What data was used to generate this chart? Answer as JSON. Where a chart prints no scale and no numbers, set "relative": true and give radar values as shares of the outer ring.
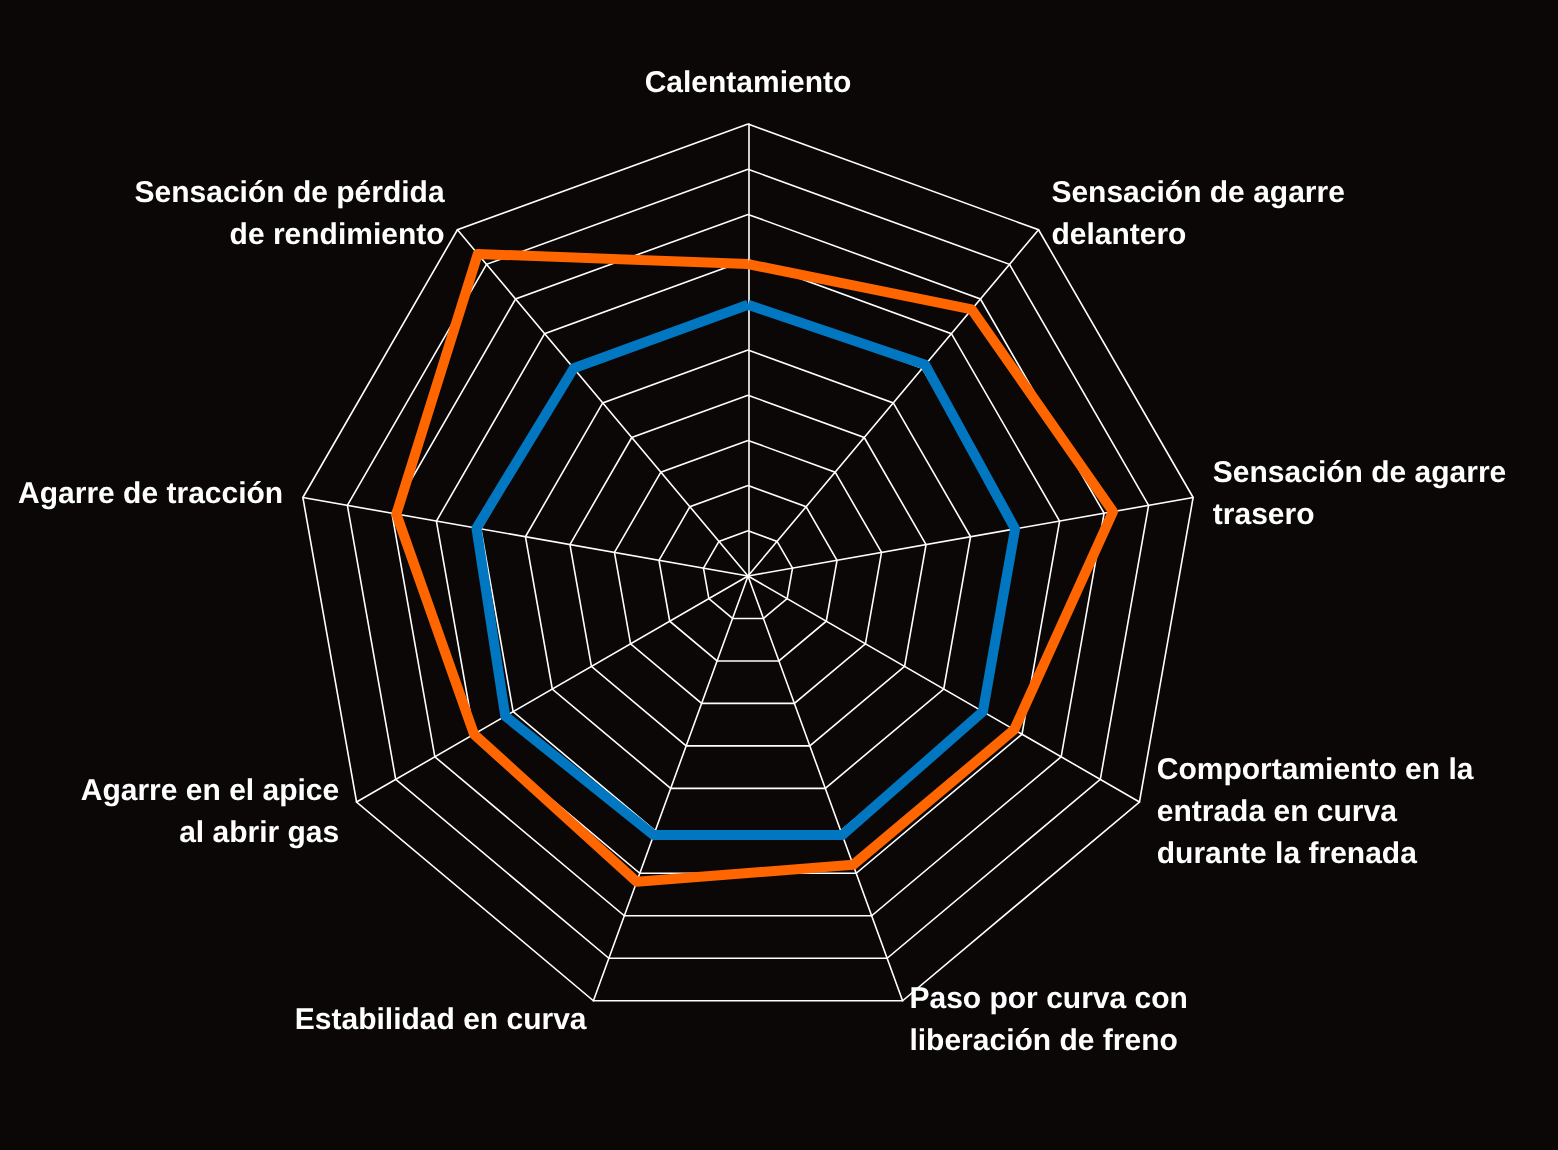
{
  "chart_data": {
    "type": "radar",
    "relative": true,
    "categories": [
      "Calentamiento",
      "Sensación de agarre delantero",
      "Sensación de agarre trasero",
      "Comportamiento en la entrada en curva durante la frenada",
      "Paso por curva con liberación de freno",
      "Estabilidad en curva",
      "Agarre en el apice al abrir gas",
      "Agarre de tracción",
      "Sensación de pérdida de rendimiento"
    ],
    "series": [
      {
        "color": "#ff6600",
        "values": [
          0.69,
          0.77,
          0.82,
          0.68,
          0.68,
          0.72,
          0.7,
          0.79,
          0.93
        ]
      },
      {
        "color": "#0077c0",
        "values": [
          0.6,
          0.61,
          0.6,
          0.6,
          0.61,
          0.61,
          0.62,
          0.61,
          0.6
        ]
      }
    ],
    "marker": "none"
  }
}
